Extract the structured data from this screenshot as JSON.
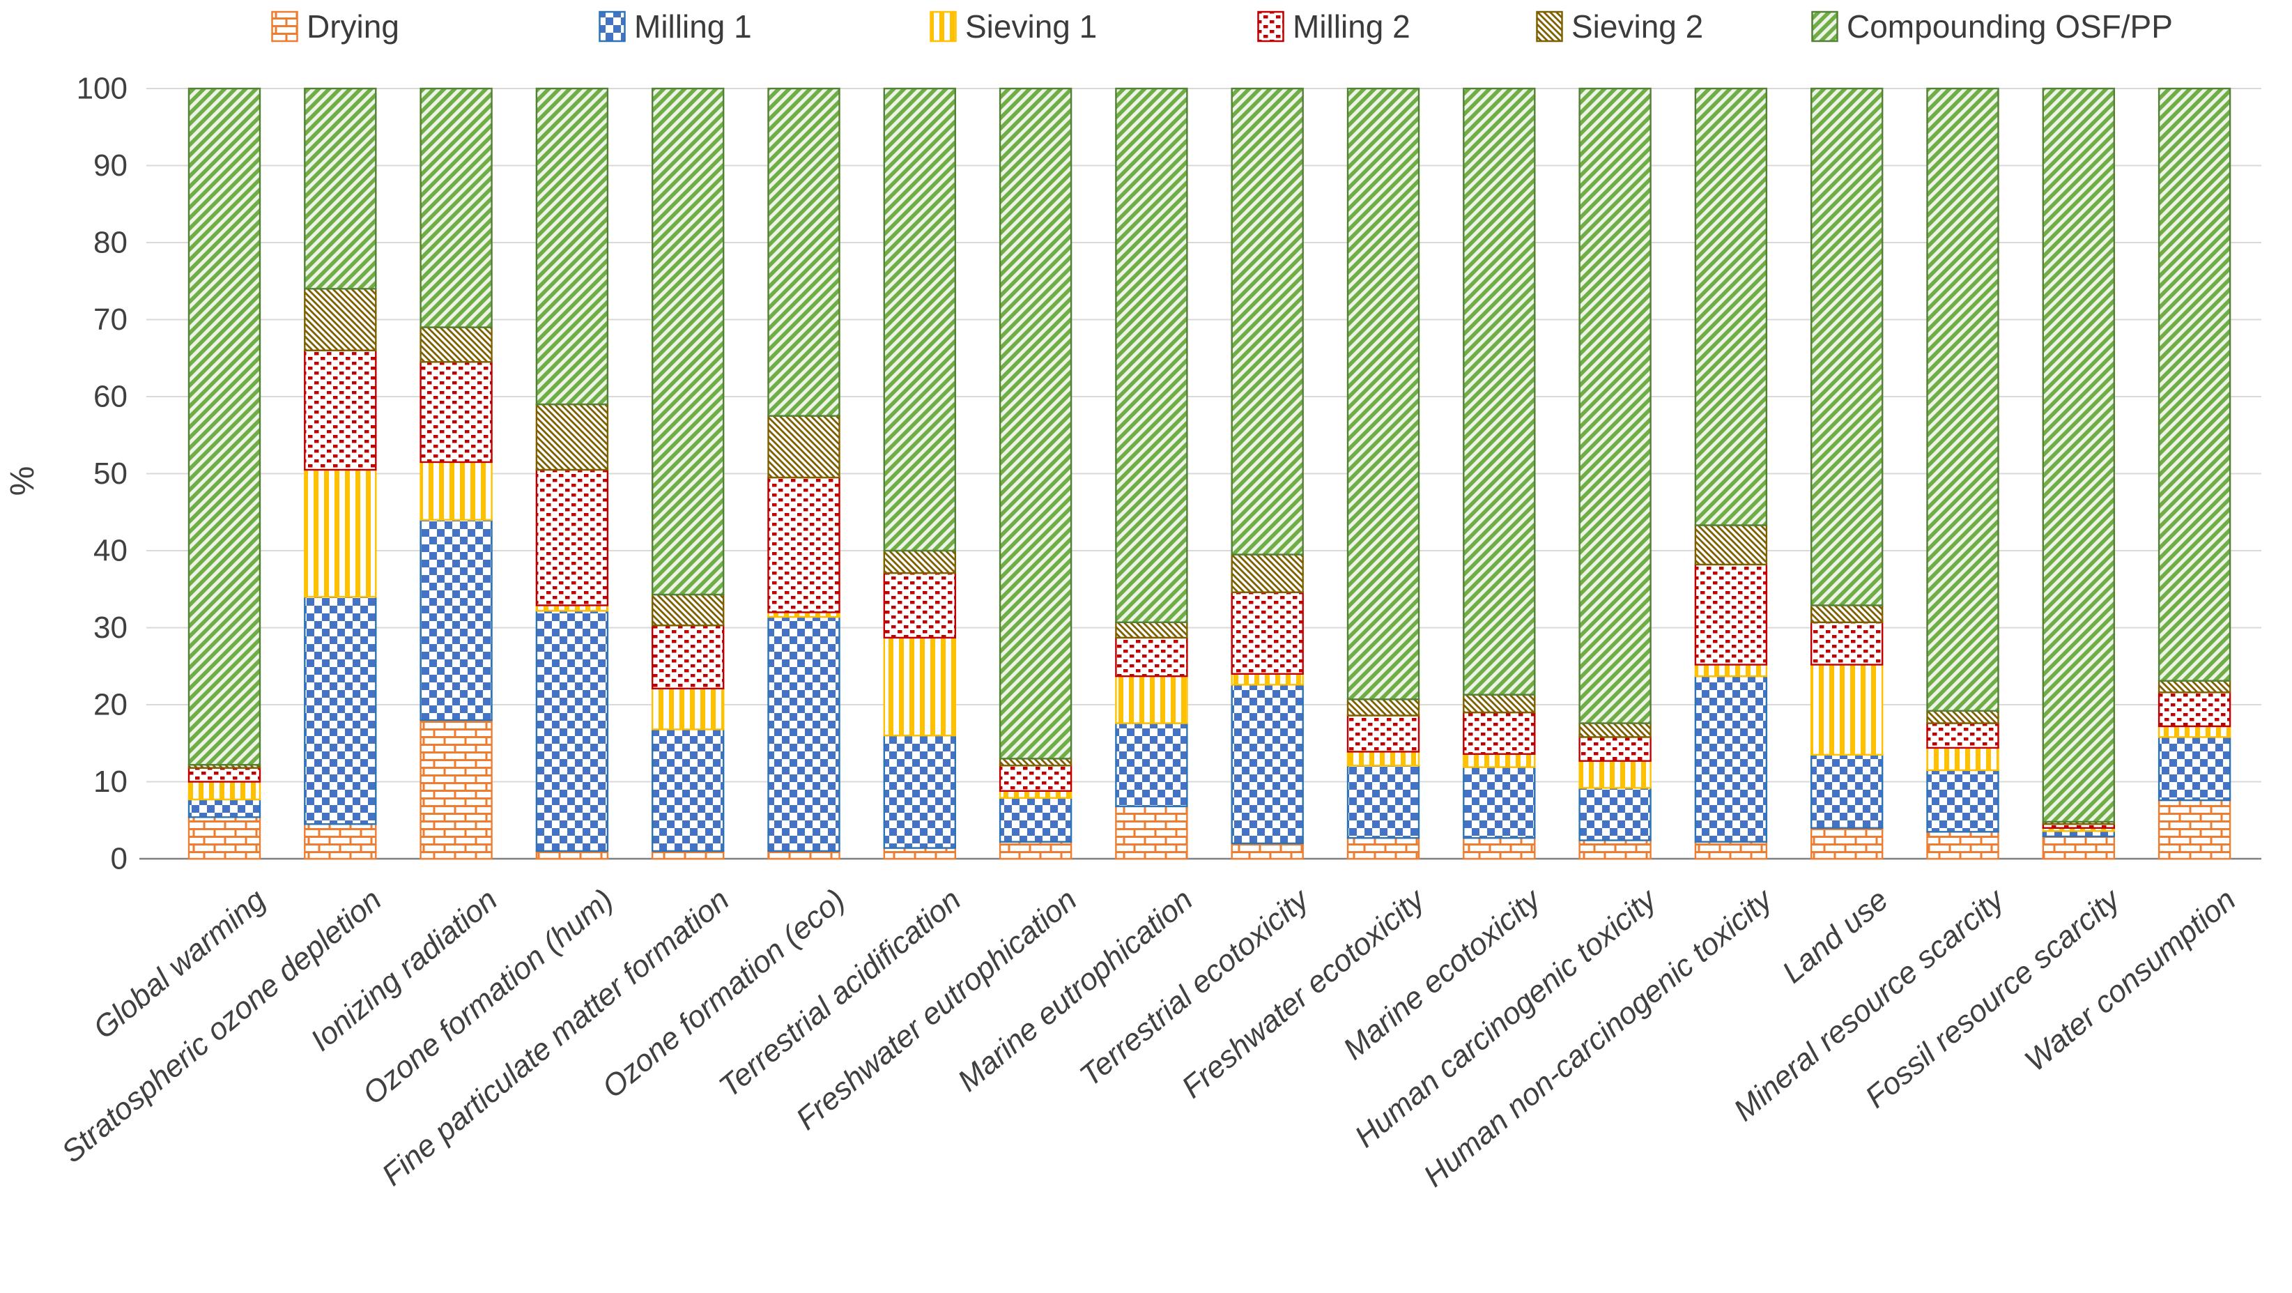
{
  "page": {
    "background": "#FFFFFF"
  },
  "legend": {
    "position": "top"
  },
  "axes": {
    "y_title": "%",
    "y_ticks": [
      0,
      10,
      20,
      30,
      40,
      50,
      60,
      70,
      80,
      90,
      100
    ],
    "grid_color": "#D9D9D9",
    "axis_line_color": "#808080",
    "tick_label_color": "#404040"
  },
  "chart_data": {
    "type": "bar",
    "stacked": true,
    "percent_stacked": true,
    "title": "",
    "xlabel": "",
    "ylabel": "%",
    "ylim": [
      0,
      100
    ],
    "yticks": [
      0,
      10,
      20,
      30,
      40,
      50,
      60,
      70,
      80,
      90,
      100
    ],
    "grid": true,
    "legend_position": "top",
    "categories": [
      "Global warming",
      "Stratospheric ozone depletion",
      "Ionizing radiation",
      "Ozone formation (hum)",
      "Fine particulate matter formation",
      "Ozone formation (eco)",
      "Terrestrial acidification",
      "Freshwater eutrophication",
      "Marine eutrophication",
      "Terrestrial ecotoxicity",
      "Freshwater ecotoxicity",
      "Marine ecotoxicity",
      "Human carcinogenic toxicity",
      "Human non-carcinogenic toxicity",
      "Land use",
      "Mineral resource scarcity",
      "Fossil resource scarcity",
      "Water consumption"
    ],
    "series": [
      {
        "name": "Drying",
        "pattern": "brick",
        "color": "#ED7D31",
        "border": "#ED7D31",
        "pattern_bg": "#FFFFFF",
        "values": [
          5.4,
          4.5,
          18,
          1,
          1,
          1,
          1.4,
          2.2,
          6.8,
          2,
          2.7,
          2.7,
          2.4,
          2.2,
          4,
          3.5,
          2.9,
          7.6
        ]
      },
      {
        "name": "Milling 1",
        "pattern": "checker",
        "color": "#4472C4",
        "border": "#2E74B5",
        "pattern_bg": "#FFFFFF",
        "values": [
          2.3,
          29.5,
          26,
          31.2,
          15.8,
          30.4,
          14.6,
          5.7,
          10.8,
          20.6,
          9.4,
          9.2,
          6.8,
          21.5,
          9.5,
          8,
          0.7,
          8.2
        ]
      },
      {
        "name": "Sieving 1",
        "pattern": "vlines",
        "color": "#FFC000",
        "border": "#FFC000",
        "pattern_bg": "#FFFFFF",
        "values": [
          2.3,
          16.5,
          7.5,
          0.7,
          5.3,
          0.6,
          12.7,
          0.9,
          6.1,
          1.4,
          1.8,
          1.7,
          3.5,
          1.5,
          11.7,
          2.9,
          0.4,
          1.4
        ]
      },
      {
        "name": "Milling 2",
        "pattern": "dashes",
        "color": "#C00000",
        "border": "#C00000",
        "pattern_bg": "#FFFFFF",
        "values": [
          1.8,
          15.5,
          13,
          17.6,
          8.2,
          17.5,
          8.4,
          3.3,
          5,
          10.6,
          4.7,
          5.4,
          3.1,
          13,
          5.5,
          3.2,
          0.5,
          4.4
        ]
      },
      {
        "name": "Sieving 2",
        "pattern": "diagback",
        "color": "#7F6000",
        "border": "#7F6000",
        "pattern_bg": "#FFFFFF",
        "values": [
          0.4,
          8,
          4.5,
          8.5,
          4,
          8,
          2.9,
          0.9,
          2,
          4.9,
          2.1,
          2.3,
          1.8,
          5.1,
          2.2,
          1.6,
          0.3,
          1.5
        ]
      },
      {
        "name": "Compounding OSF/PP",
        "pattern": "diagfwd",
        "color": "#70AD47",
        "border": "#538135",
        "pattern_bg": "#EDF4E7",
        "values": [
          87.8,
          26,
          31,
          41,
          65.7,
          42.5,
          60,
          87,
          69.3,
          60.5,
          79.3,
          78.7,
          82.4,
          56.7,
          67.1,
          80.8,
          95.2,
          76.9
        ]
      }
    ]
  }
}
